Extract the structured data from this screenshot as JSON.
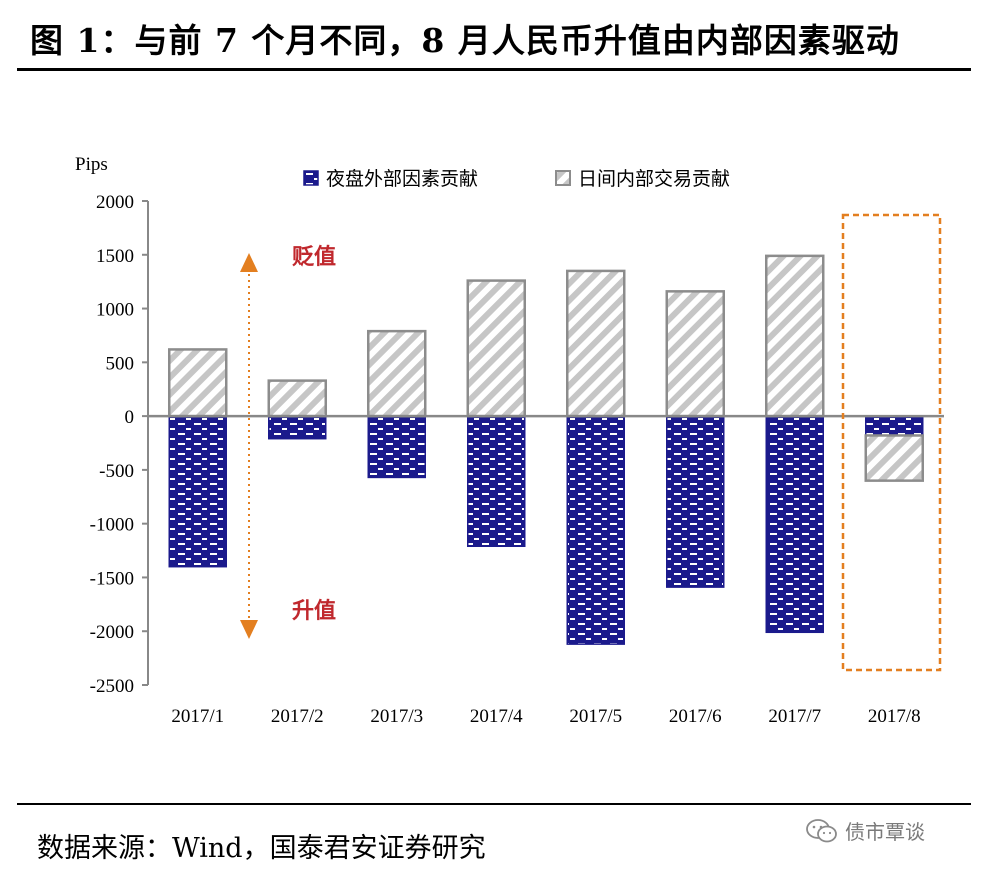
{
  "title": "图 1：与前 7 个月不同，8 月人民币升值由内部因素驱动",
  "source": "数据来源：Wind，国泰君安证券研究",
  "watermark": "债市覃谈",
  "colors": {
    "night": "#1b1a8c",
    "night_dash": "#ffffff",
    "day_stripe": "#c6c6c6",
    "day_border": "#8c8c8c",
    "axis": "#888888",
    "highlight": "#e37f20",
    "annotation": "#c0282d"
  },
  "chart_data": {
    "type": "bar",
    "title": "图 1：与前 7 个月不同，8 月人民币升值由内部因素驱动",
    "ylabel": "Pips",
    "xlabel": "",
    "ylim": [
      -2500,
      2000
    ],
    "yticks": [
      "2000",
      "1500",
      "1000",
      "500",
      "0",
      "-500",
      "-1000",
      "-1500",
      "-2000",
      "-2500"
    ],
    "categories": [
      "2017/1",
      "2017/2",
      "2017/3",
      "2017/4",
      "2017/5",
      "2017/6",
      "2017/7",
      "2017/8"
    ],
    "series": [
      {
        "name": "夜盘外部因素贡献",
        "values": [
          -1400,
          -210,
          -570,
          -1210,
          -2120,
          -1590,
          -2010,
          -180
        ]
      },
      {
        "name": "日间内部交易贡献",
        "values": [
          620,
          330,
          790,
          1260,
          1350,
          1160,
          1490,
          -420
        ]
      }
    ],
    "annotations": {
      "up": "贬值",
      "down": "升值"
    },
    "highlight_category": "2017/8"
  }
}
